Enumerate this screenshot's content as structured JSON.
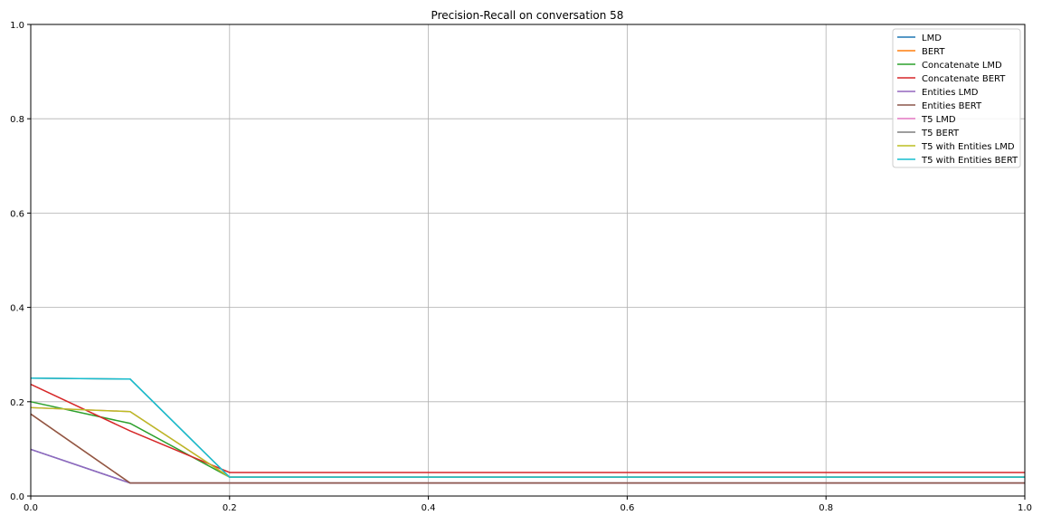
{
  "chart_data": {
    "type": "line",
    "title": "Precision-Recall on conversation 58",
    "xlabel": "",
    "ylabel": "",
    "xlim": [
      0,
      1
    ],
    "ylim": [
      0,
      1
    ],
    "grid": true,
    "legend_position": "top-right",
    "x_ticks": [
      "0.0",
      "0.2",
      "0.4",
      "0.6",
      "0.8",
      "1.0"
    ],
    "y_ticks": [
      "0.0",
      "0.2",
      "0.4",
      "0.6",
      "0.8",
      "1.0"
    ],
    "x": [
      0.0,
      0.1,
      0.2,
      0.3,
      0.4,
      0.5,
      0.6,
      0.7,
      0.8,
      0.9,
      1.0
    ],
    "series": [
      {
        "name": "LMD",
        "color": "#1f77b4",
        "values": [
          0.099,
          0.0275,
          0.0275,
          0.0275,
          0.0275,
          0.0275,
          0.0275,
          0.0275,
          0.0275,
          0.0275,
          0.0275
        ]
      },
      {
        "name": "BERT",
        "color": "#ff7f0e",
        "values": [
          0.174,
          0.0275,
          0.0275,
          0.0275,
          0.0275,
          0.0275,
          0.0275,
          0.0275,
          0.0275,
          0.0275,
          0.0275
        ]
      },
      {
        "name": "Concatenate LMD",
        "color": "#2ca02c",
        "values": [
          0.2,
          0.154,
          0.04,
          0.04,
          0.04,
          0.04,
          0.04,
          0.04,
          0.04,
          0.04,
          0.04
        ]
      },
      {
        "name": "Concatenate BERT",
        "color": "#d62728",
        "values": [
          0.237,
          0.138,
          0.05,
          0.05,
          0.05,
          0.05,
          0.05,
          0.05,
          0.05,
          0.05,
          0.05
        ]
      },
      {
        "name": "Entities LMD",
        "color": "#9467bd",
        "values": [
          0.099,
          0.0275,
          0.0275,
          0.0275,
          0.0275,
          0.0275,
          0.0275,
          0.0275,
          0.0275,
          0.0275,
          0.0275
        ]
      },
      {
        "name": "Entities BERT",
        "color": "#8c564b",
        "values": [
          0.174,
          0.0275,
          0.0275,
          0.0275,
          0.0275,
          0.0275,
          0.0275,
          0.0275,
          0.0275,
          0.0275,
          0.0275
        ]
      },
      {
        "name": "T5 LMD",
        "color": "#e377c2",
        "values": [
          0.1875,
          0.179,
          0.04,
          0.04,
          0.04,
          0.04,
          0.04,
          0.04,
          0.04,
          0.04,
          0.04
        ]
      },
      {
        "name": "T5 BERT",
        "color": "#7f7f7f",
        "values": [
          0.25,
          0.248,
          0.04,
          0.04,
          0.04,
          0.04,
          0.04,
          0.04,
          0.04,
          0.04,
          0.04
        ]
      },
      {
        "name": "T5 with Entities LMD",
        "color": "#bcbd22",
        "values": [
          0.1875,
          0.179,
          0.04,
          0.04,
          0.04,
          0.04,
          0.04,
          0.04,
          0.04,
          0.04,
          0.04
        ]
      },
      {
        "name": "T5 with Entities BERT",
        "color": "#17becf",
        "values": [
          0.25,
          0.248,
          0.04,
          0.04,
          0.04,
          0.04,
          0.04,
          0.04,
          0.04,
          0.04,
          0.04
        ]
      }
    ]
  }
}
